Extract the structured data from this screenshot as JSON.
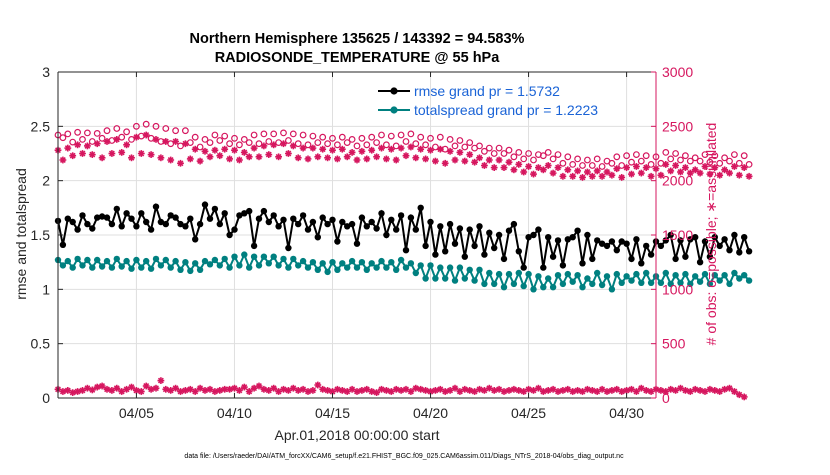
{
  "chart_data": {
    "type": "line",
    "title_line1": "Northern Hemisphere 135625 / 143392 = 94.583%",
    "title_line2": "RADIOSONDE_TEMPERATURE @ 55 hPa",
    "xlabel": "Apr.01,2018 00:00:00 start",
    "ylabel_left": "rmse and totalspread",
    "ylabel_right": "# of obs: o=possible; ∗=assimilated",
    "footer": "data file: /Users/raeder/DAI/ATM_forcXX/CAM6_setup/f.e21.FHIST_BGC.f09_025.CAM6assim.011/Diags_NTrS_2018-04/obs_diag_output.nc",
    "xlim": [
      1.0,
      31.5
    ],
    "ylim_left": [
      0,
      3
    ],
    "ylim_right": [
      0,
      3000
    ],
    "x_ticks": [
      5,
      10,
      15,
      20,
      25,
      30
    ],
    "x_tick_labels": [
      "04/05",
      "04/10",
      "04/15",
      "04/20",
      "04/25",
      "04/30"
    ],
    "y_left_ticks": [
      0,
      0.5,
      1,
      1.5,
      2,
      2.5,
      3
    ],
    "y_left_tick_labels": [
      "0",
      "0.5",
      "1",
      "1.5",
      "2",
      "2.5",
      "3"
    ],
    "y_right_ticks": [
      0,
      500,
      1000,
      1500,
      2000,
      2500,
      3000
    ],
    "y_right_tick_labels": [
      "0",
      "500",
      "1000",
      "1500",
      "2000",
      "2500",
      "3000"
    ],
    "legend": [
      {
        "label": "rmse grand pr = 1.5732",
        "color": "#000000"
      },
      {
        "label": "totalspread grand pr = 1.2223",
        "color": "#008080"
      }
    ],
    "x_start": 1.0,
    "x_step": 0.25,
    "series": [
      {
        "name": "rmse",
        "axis": "left",
        "color": "#000000",
        "marker": "dot",
        "values": [
          1.63,
          1.41,
          1.65,
          1.62,
          1.55,
          1.68,
          1.6,
          1.56,
          1.66,
          1.67,
          1.66,
          1.6,
          1.74,
          1.58,
          1.7,
          1.65,
          1.58,
          1.7,
          1.62,
          1.55,
          1.76,
          1.62,
          1.6,
          1.68,
          1.66,
          1.6,
          1.58,
          1.65,
          1.46,
          1.6,
          1.78,
          1.65,
          1.74,
          1.6,
          1.7,
          1.5,
          1.55,
          1.68,
          1.7,
          1.72,
          1.4,
          1.65,
          1.72,
          1.62,
          1.68,
          1.58,
          1.64,
          1.38,
          1.65,
          1.6,
          1.68,
          1.55,
          1.62,
          1.48,
          1.66,
          1.6,
          1.64,
          1.44,
          1.62,
          1.58,
          1.6,
          1.42,
          1.66,
          1.58,
          1.62,
          1.56,
          1.7,
          1.5,
          1.64,
          1.55,
          1.68,
          1.36,
          1.66,
          1.55,
          1.75,
          1.4,
          1.62,
          1.32,
          1.58,
          1.35,
          1.6,
          1.42,
          1.56,
          1.3,
          1.55,
          1.4,
          1.58,
          1.32,
          1.52,
          1.38,
          1.5,
          1.28,
          1.54,
          1.6,
          1.35,
          1.2,
          1.48,
          1.5,
          1.55,
          1.2,
          1.48,
          1.3,
          1.45,
          1.22,
          1.46,
          1.48,
          1.54,
          1.24,
          1.5,
          1.28,
          1.45,
          1.42,
          1.4,
          1.44,
          1.36,
          1.44,
          1.42,
          1.28,
          1.46,
          1.24,
          1.4,
          1.32,
          1.44,
          1.4,
          1.45,
          1.5,
          1.28,
          1.45,
          1.3,
          1.46,
          1.48,
          1.25,
          1.44,
          1.3,
          1.48,
          1.4,
          1.46,
          1.36,
          1.5,
          1.34,
          1.48,
          1.35
        ]
      },
      {
        "name": "totalspread",
        "axis": "left",
        "color": "#008080",
        "marker": "dot",
        "values": [
          1.27,
          1.22,
          1.26,
          1.2,
          1.28,
          1.22,
          1.27,
          1.2,
          1.27,
          1.21,
          1.26,
          1.2,
          1.28,
          1.21,
          1.26,
          1.19,
          1.27,
          1.2,
          1.26,
          1.19,
          1.28,
          1.22,
          1.27,
          1.2,
          1.26,
          1.18,
          1.25,
          1.17,
          1.24,
          1.18,
          1.26,
          1.23,
          1.27,
          1.22,
          1.28,
          1.2,
          1.3,
          1.22,
          1.32,
          1.2,
          1.3,
          1.22,
          1.3,
          1.24,
          1.3,
          1.22,
          1.28,
          1.2,
          1.28,
          1.22,
          1.26,
          1.2,
          1.25,
          1.18,
          1.24,
          1.16,
          1.25,
          1.18,
          1.24,
          1.2,
          1.26,
          1.2,
          1.25,
          1.18,
          1.24,
          1.2,
          1.26,
          1.2,
          1.25,
          1.18,
          1.27,
          1.2,
          1.24,
          1.15,
          1.22,
          1.1,
          1.22,
          1.1,
          1.2,
          1.1,
          1.2,
          1.08,
          1.2,
          1.1,
          1.18,
          1.08,
          1.18,
          1.05,
          1.15,
          1.05,
          1.14,
          1.02,
          1.14,
          1.05,
          1.15,
          1.03,
          1.14,
          1.0,
          1.12,
          1.02,
          1.1,
          1.02,
          1.13,
          1.05,
          1.14,
          1.07,
          1.13,
          1.02,
          1.1,
          1.05,
          1.15,
          1.04,
          1.12,
          1.0,
          1.14,
          1.06,
          1.12,
          1.08,
          1.14,
          1.06,
          1.15,
          1.06,
          1.12,
          1.06,
          1.15,
          1.05,
          1.13,
          1.06,
          1.14,
          1.05,
          1.12,
          1.07,
          1.14,
          1.05,
          1.13,
          1.08,
          1.13,
          1.05,
          1.15,
          1.1,
          1.13,
          1.08
        ]
      },
      {
        "name": "possible",
        "axis": "right",
        "color": "#d6175f",
        "marker": "circle",
        "values": [
          2420,
          2395,
          2430,
          2355,
          2445,
          2380,
          2440,
          2360,
          2435,
          2390,
          2460,
          2370,
          2480,
          2400,
          2450,
          2380,
          2500,
          2410,
          2520,
          2390,
          2500,
          2360,
          2480,
          2340,
          2460,
          2320,
          2460,
          2350,
          2400,
          2310,
          2380,
          2350,
          2420,
          2370,
          2410,
          2340,
          2390,
          2330,
          2380,
          2350,
          2420,
          2340,
          2430,
          2360,
          2430,
          2350,
          2440,
          2370,
          2430,
          2340,
          2420,
          2330,
          2410,
          2350,
          2400,
          2340,
          2390,
          2330,
          2400,
          2350,
          2380,
          2320,
          2390,
          2330,
          2400,
          2350,
          2420,
          2330,
          2410,
          2320,
          2420,
          2360,
          2430,
          2340,
          2400,
          2330,
          2390,
          2310,
          2400,
          2290,
          2380,
          2320,
          2370,
          2310,
          2350,
          2300,
          2320,
          2270,
          2300,
          2250,
          2300,
          2250,
          2280,
          2220,
          2260,
          2200,
          2250,
          2190,
          2240,
          2230,
          2260,
          2200,
          2240,
          2160,
          2220,
          2150,
          2200,
          2140,
          2190,
          2140,
          2200,
          2130,
          2180,
          2160,
          2220,
          2140,
          2230,
          2170,
          2240,
          2180,
          2230,
          2150,
          2220,
          2160,
          2260,
          2200,
          2250,
          2190,
          2230,
          2180,
          2210,
          2180,
          2240,
          2170,
          2230,
          2160,
          2210,
          2180,
          2240,
          2160,
          2230,
          2150
        ]
      },
      {
        "name": "assimilated",
        "axis": "right",
        "color": "#d6175f",
        "marker": "asterisk",
        "values": [
          2280,
          2190,
          2300,
          2230,
          2330,
          2250,
          2320,
          2240,
          2340,
          2210,
          2360,
          2250,
          2380,
          2260,
          2330,
          2210,
          2400,
          2250,
          2420,
          2240,
          2380,
          2210,
          2360,
          2190,
          2360,
          2160,
          2340,
          2200,
          2290,
          2180,
          2270,
          2220,
          2280,
          2230,
          2290,
          2200,
          2280,
          2190,
          2260,
          2220,
          2300,
          2220,
          2320,
          2240,
          2330,
          2220,
          2340,
          2250,
          2320,
          2210,
          2300,
          2200,
          2300,
          2220,
          2290,
          2210,
          2280,
          2200,
          2290,
          2220,
          2260,
          2190,
          2270,
          2200,
          2280,
          2220,
          2300,
          2200,
          2290,
          2190,
          2300,
          2230,
          2310,
          2210,
          2290,
          2200,
          2280,
          2180,
          2290,
          2160,
          2270,
          2190,
          2260,
          2180,
          2240,
          2170,
          2210,
          2140,
          2190,
          2120,
          2190,
          2120,
          2170,
          2100,
          2150,
          2080,
          2130,
          2060,
          2120,
          2100,
          2140,
          2070,
          2120,
          2040,
          2100,
          2040,
          2090,
          2030,
          2080,
          2040,
          2090,
          2040,
          2080,
          2050,
          2110,
          2030,
          2120,
          2060,
          2130,
          2070,
          2120,
          2040,
          2110,
          2050,
          2150,
          2090,
          2140,
          2080,
          2120,
          2070,
          2100,
          2070,
          2130,
          2060,
          2120,
          2050,
          2100,
          2070,
          2130,
          2050,
          2120,
          2040
        ]
      },
      {
        "name": "assimilated_low",
        "axis": "right",
        "color": "#d6175f",
        "marker": "asterisk",
        "values": [
          80,
          60,
          70,
          50,
          60,
          70,
          90,
          75,
          100,
          110,
          80,
          70,
          90,
          60,
          80,
          100,
          70,
          60,
          110,
          80,
          90,
          160,
          80,
          70,
          90,
          60,
          70,
          80,
          60,
          90,
          70,
          80,
          60,
          70,
          80,
          80,
          90,
          70,
          100,
          60,
          90,
          110,
          80,
          70,
          90,
          60,
          80,
          70,
          90,
          70,
          80,
          60,
          70,
          120,
          80,
          70,
          60,
          80,
          70,
          60,
          80,
          60,
          70,
          80,
          60,
          50,
          80,
          70,
          60,
          80,
          70,
          80,
          60,
          90,
          80,
          70,
          60,
          70,
          80,
          60,
          70,
          90,
          60,
          80,
          70,
          60,
          80,
          70,
          90,
          70,
          80,
          60,
          70,
          80,
          70,
          60,
          80,
          70,
          90,
          60,
          70,
          80,
          60,
          70,
          80,
          60,
          70,
          60,
          80,
          70,
          60,
          80,
          60,
          70,
          80,
          60,
          70,
          80,
          60,
          90,
          70,
          60,
          80,
          70,
          60,
          80,
          70,
          90,
          70,
          60,
          80,
          70,
          60,
          80,
          70,
          60,
          80,
          90,
          60,
          30,
          10
        ]
      }
    ]
  }
}
